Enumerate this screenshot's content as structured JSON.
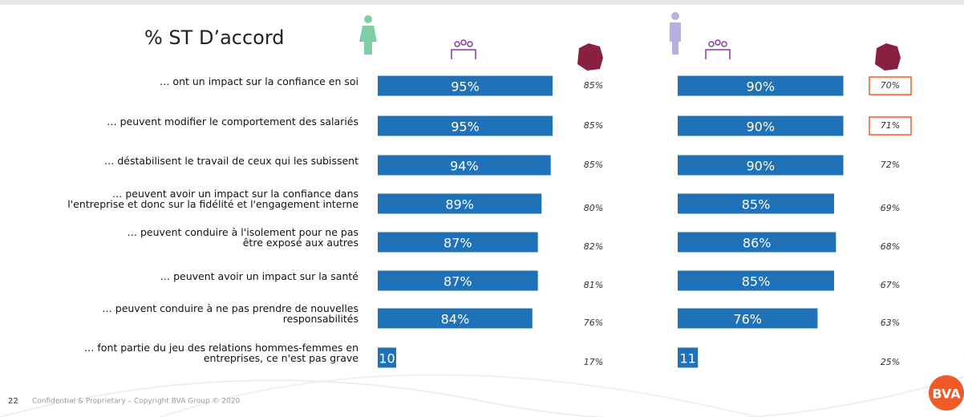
{
  "title": "% ST D’accord",
  "categories": [
    "… ont un impact sur la confiance en soi",
    "… peuvent modifier le comportement des salariés",
    "… déstabilisent le travail de ceux qui les subissent",
    "… peuvent avoir un impact sur la confiance dans\nl'entreprise et donc sur la fidélité et l'engagement interne",
    "… peuvent conduire à l'isolement pour ne pas\nêtre exposé aux autres",
    "… peuvent avoir un impact sur la santé",
    "… peuvent conduire à ne pas prendre de nouvelles\nresponsabilités",
    "… font partie du jeu des relations hommes-femmes en\nentreprises, ce n'est pas grave"
  ],
  "chart_data": [
    {
      "type": "bar",
      "color": "#1f72b8",
      "xlim": [
        0,
        100
      ],
      "values": [
        95,
        95,
        94,
        89,
        87,
        87,
        84,
        10
      ],
      "value_labels": [
        "95%",
        "95%",
        "94%",
        "89%",
        "87%",
        "87%",
        "84%",
        "10"
      ],
      "france": [
        "85%",
        "85%",
        "85%",
        "80%",
        "82%",
        "81%",
        "76%",
        "17%"
      ],
      "highlighted": [
        false,
        false,
        false,
        false,
        false,
        false,
        false,
        false
      ]
    },
    {
      "type": "bar",
      "color": "#1f72b8",
      "xlim": [
        0,
        100
      ],
      "values": [
        90,
        90,
        90,
        85,
        86,
        85,
        76,
        11
      ],
      "value_labels": [
        "90%",
        "90%",
        "90%",
        "85%",
        "86%",
        "85%",
        "76%",
        "11"
      ],
      "france": [
        "70%",
        "71%",
        "72%",
        "69%",
        "68%",
        "67%",
        "63%",
        "25%"
      ],
      "highlighted": [
        true,
        true,
        false,
        false,
        false,
        false,
        false,
        false
      ]
    }
  ],
  "footer": {
    "page": "22",
    "text": "Confidential & Proprietary – Copyright BVA Group © 2020",
    "logo": "BVA"
  }
}
